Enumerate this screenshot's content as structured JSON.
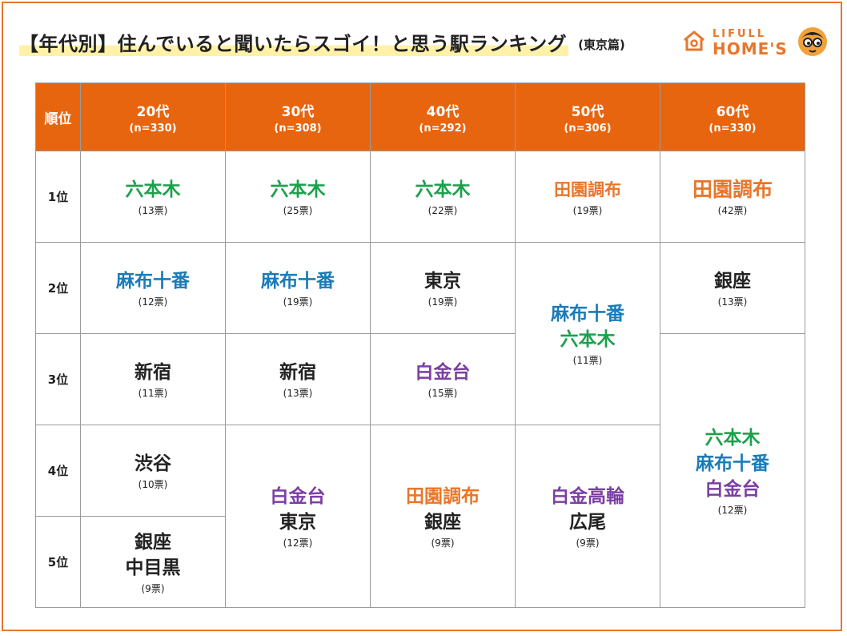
{
  "title": {
    "main": "【年代別】住んでいると聞いたらスゴイ！と思う駅ランキング",
    "sub": "(東京篇)"
  },
  "logo": {
    "line1": "LIFULL",
    "line2": "HOME'S"
  },
  "colors": {
    "accent": "#e8650f",
    "green": "#1aa14b",
    "blue": "#1a7cb8",
    "orange": "#e8762b",
    "purple": "#7b3fa3"
  },
  "table": {
    "rank_header": "順位",
    "columns": [
      {
        "age": "20代",
        "n": "(n=330)"
      },
      {
        "age": "30代",
        "n": "(n=308)"
      },
      {
        "age": "40代",
        "n": "(n=292)"
      },
      {
        "age": "50代",
        "n": "(n=306)"
      },
      {
        "age": "60代",
        "n": "(n=330)"
      }
    ],
    "ranks": [
      "1位",
      "2位",
      "3位",
      "4位",
      "5位"
    ],
    "cells": {
      "c20_r1": {
        "stations": [
          "六本木"
        ],
        "votes": "(13票)"
      },
      "c30_r1": {
        "stations": [
          "六本木"
        ],
        "votes": "(25票)"
      },
      "c40_r1": {
        "stations": [
          "六本木"
        ],
        "votes": "(22票)"
      },
      "c50_r1": {
        "stations": [
          "田園調布"
        ],
        "votes": "(19票)"
      },
      "c60_r1": {
        "stations": [
          "田園調布"
        ],
        "votes": "(42票)"
      },
      "c20_r2": {
        "stations": [
          "麻布十番"
        ],
        "votes": "(12票)"
      },
      "c30_r2": {
        "stations": [
          "麻布十番"
        ],
        "votes": "(19票)"
      },
      "c40_r2": {
        "stations": [
          "東京"
        ],
        "votes": "(19票)"
      },
      "c50_r23": {
        "stations": [
          "麻布十番",
          "六本木"
        ],
        "votes": "(11票)"
      },
      "c60_r2": {
        "stations": [
          "銀座"
        ],
        "votes": "(13票)"
      },
      "c20_r3": {
        "stations": [
          "新宿"
        ],
        "votes": "(11票)"
      },
      "c30_r3": {
        "stations": [
          "新宿"
        ],
        "votes": "(13票)"
      },
      "c40_r3": {
        "stations": [
          "白金台"
        ],
        "votes": "(15票)"
      },
      "c60_r35": {
        "stations": [
          "六本木",
          "麻布十番",
          "白金台"
        ],
        "votes": "(12票)"
      },
      "c20_r4": {
        "stations": [
          "渋谷"
        ],
        "votes": "(10票)"
      },
      "c30_r45": {
        "stations": [
          "白金台",
          "東京"
        ],
        "votes": "(12票)"
      },
      "c40_r45": {
        "stations": [
          "田園調布",
          "銀座"
        ],
        "votes": "(9票)"
      },
      "c50_r45": {
        "stations": [
          "白金高輪",
          "広尾"
        ],
        "votes": "(9票)"
      },
      "c20_r5": {
        "stations": [
          "銀座",
          "中目黒"
        ],
        "votes": "(9票)"
      }
    }
  }
}
